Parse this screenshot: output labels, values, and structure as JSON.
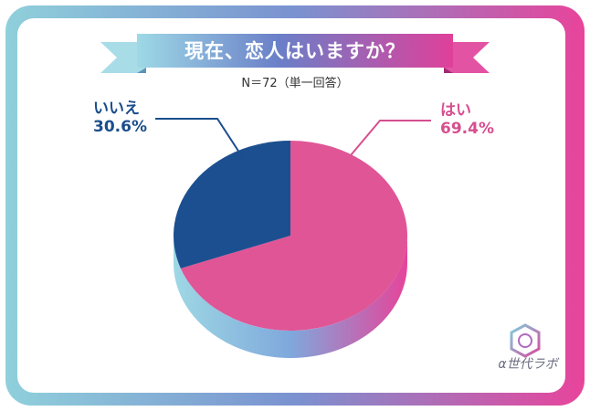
{
  "header": {
    "title": "現在、恋人はいますか？",
    "sample_note": "N＝72（単一回答）"
  },
  "brand": {
    "name": "α世代ラボ"
  },
  "chart_data": {
    "type": "pie",
    "slices": [
      {
        "label": "はい",
        "value_label": "69.4%",
        "value": 69.4,
        "color": "#e05596"
      },
      {
        "label": "いいえ",
        "value_label": "30.6%",
        "value": 30.6,
        "color": "#1c4f8f"
      }
    ],
    "legend": "none"
  },
  "colors": {
    "frame_teal": "#7fc7d3",
    "frame_pink": "#e8449b",
    "ribbon_start": "#8fd3e3",
    "ribbon_end": "#e0409a"
  }
}
